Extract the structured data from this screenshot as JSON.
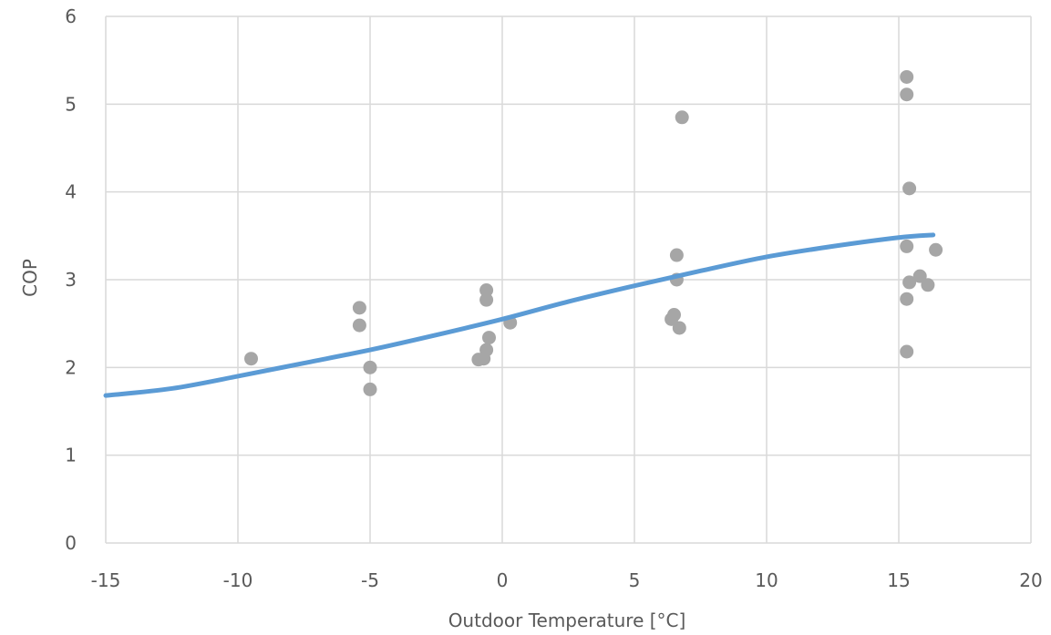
{
  "chart_data": {
    "type": "scatter",
    "title": "",
    "xlabel": "Outdoor Temperature [°C]",
    "ylabel": "COP",
    "xlim": [
      -15,
      20
    ],
    "ylim": [
      0,
      6
    ],
    "x_ticks": [
      -15,
      -10,
      -5,
      0,
      5,
      10,
      15,
      20
    ],
    "y_ticks": [
      0,
      1,
      2,
      3,
      4,
      5,
      6
    ],
    "grid": true,
    "legend": "none",
    "series": [
      {
        "kind": "scatter",
        "color": "#a6a6a6",
        "points": [
          [
            -9.5,
            2.1
          ],
          [
            -5.4,
            2.68
          ],
          [
            -5.4,
            2.48
          ],
          [
            -5.0,
            2.0
          ],
          [
            -5.0,
            1.75
          ],
          [
            -0.6,
            2.88
          ],
          [
            -0.6,
            2.77
          ],
          [
            -0.5,
            2.34
          ],
          [
            -0.6,
            2.2
          ],
          [
            -0.7,
            2.1
          ],
          [
            -0.9,
            2.09
          ],
          [
            0.3,
            2.51
          ],
          [
            6.6,
            3.28
          ],
          [
            6.6,
            3.0
          ],
          [
            6.5,
            2.6
          ],
          [
            6.4,
            2.55
          ],
          [
            6.7,
            2.45
          ],
          [
            6.8,
            4.85
          ],
          [
            15.3,
            5.31
          ],
          [
            15.3,
            5.11
          ],
          [
            15.4,
            4.04
          ],
          [
            15.3,
            3.38
          ],
          [
            15.4,
            2.97
          ],
          [
            15.8,
            3.04
          ],
          [
            16.1,
            2.94
          ],
          [
            15.3,
            2.78
          ],
          [
            15.3,
            2.18
          ],
          [
            16.4,
            3.34
          ]
        ]
      },
      {
        "kind": "line",
        "color": "#5b9bd5",
        "points": [
          [
            -15,
            1.68
          ],
          [
            -12.5,
            1.76
          ],
          [
            -10,
            1.9
          ],
          [
            -7.5,
            2.05
          ],
          [
            -5,
            2.2
          ],
          [
            -2.5,
            2.37
          ],
          [
            0,
            2.55
          ],
          [
            2.5,
            2.75
          ],
          [
            5,
            2.93
          ],
          [
            7.5,
            3.1
          ],
          [
            10,
            3.26
          ],
          [
            12.5,
            3.38
          ],
          [
            15,
            3.48
          ],
          [
            16.3,
            3.51
          ]
        ]
      }
    ]
  }
}
